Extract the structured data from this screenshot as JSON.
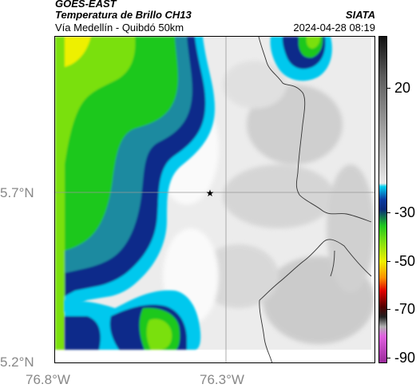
{
  "header": {
    "satellite": "GOES-EAST",
    "product": "Temperatura de Brillo CH13",
    "region": "Vía Medellín - Quibdó 50km",
    "source": "SIATA",
    "timestamp": "2024-04-28 08:19"
  },
  "map": {
    "lat_labels": [
      "5.7°N",
      "5.2°N"
    ],
    "lon_labels": [
      "76.8°W",
      "76.3°W"
    ],
    "marker_icon": "star-icon",
    "gridlines": true
  },
  "colorbar": {
    "ticks": [
      "20",
      "-30",
      "-50",
      "-70",
      "-90"
    ],
    "colors": {
      "warm_top": "#1a1a1a",
      "gray_mid": "#9a9a9a",
      "light": "#e8e8e8",
      "cyan": "#00d0f0",
      "blue": "#0a2a8a",
      "green": "#1ec81e",
      "yellow": "#f0f000",
      "orange": "#ff7000",
      "red": "#c00000",
      "dark": "#300000",
      "magenta": "#b040b0"
    }
  }
}
